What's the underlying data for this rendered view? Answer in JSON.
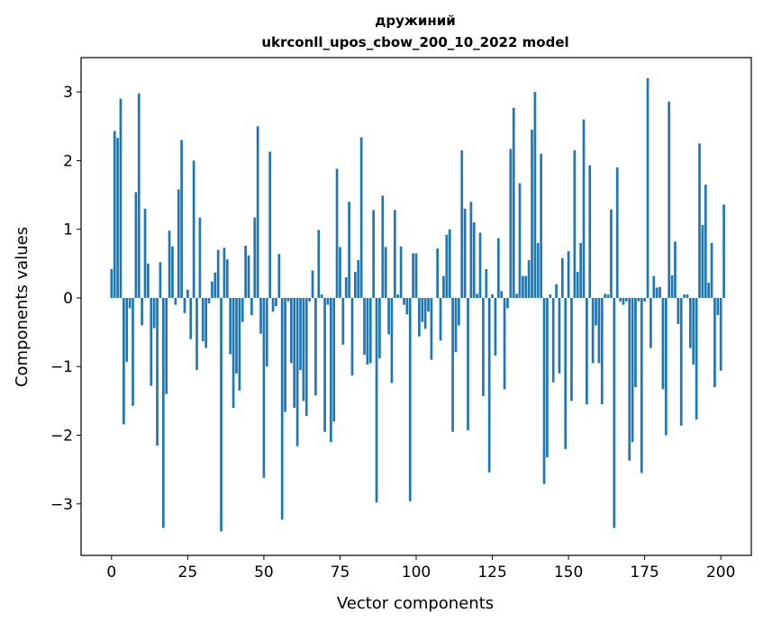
{
  "chart_data": {
    "type": "bar",
    "title": "дружиний",
    "subtitle": "ukrconll_upos_cbow_200_10_2022 model",
    "xlabel": "Vector components",
    "ylabel": "Components values",
    "xlim": [
      -10,
      210
    ],
    "ylim": [
      -3.75,
      3.5
    ],
    "xticks": [
      0,
      25,
      50,
      75,
      100,
      125,
      150,
      175,
      200
    ],
    "yticks": [
      -3,
      -2,
      -1,
      0,
      1,
      2,
      3
    ],
    "ytick_labels": [
      "−3",
      "−2",
      "−1",
      "0",
      "1",
      "2",
      "3"
    ],
    "grid": false,
    "bar_color": "#1f77b4",
    "values": [
      0.42,
      2.43,
      2.33,
      2.9,
      -1.84,
      -0.93,
      -0.15,
      -1.57,
      1.54,
      2.98,
      -0.4,
      1.3,
      0.5,
      -1.28,
      -0.44,
      -2.15,
      0.52,
      -3.35,
      -1.4,
      0.98,
      0.75,
      -0.1,
      1.58,
      2.3,
      -0.22,
      0.12,
      -0.6,
      2.0,
      -1.05,
      1.17,
      -0.63,
      -0.73,
      -0.08,
      0.24,
      0.37,
      0.7,
      -3.4,
      0.73,
      0.56,
      -0.82,
      -1.6,
      -1.1,
      -1.35,
      -0.35,
      0.76,
      0.62,
      -0.25,
      1.17,
      2.5,
      -0.52,
      -2.62,
      -1.0,
      2.13,
      -0.2,
      -0.12,
      0.64,
      -3.23,
      -1.66,
      -0.05,
      -0.95,
      -1.6,
      -2.16,
      -1.05,
      -1.5,
      -1.72,
      -0.05,
      0.4,
      -1.42,
      0.99,
      0.05,
      -1.95,
      -0.1,
      -2.1,
      -1.8,
      1.88,
      0.74,
      -0.68,
      0.3,
      1.4,
      -1.13,
      0.38,
      0.55,
      2.34,
      -0.83,
      -0.97,
      -0.95,
      1.28,
      -2.98,
      -0.88,
      1.49,
      0.74,
      -0.53,
      -1.24,
      1.28,
      0.05,
      0.75,
      -0.1,
      -0.24,
      -2.96,
      0.65,
      0.65,
      -0.56,
      -0.35,
      -0.45,
      -0.2,
      -0.9,
      0.0,
      0.72,
      -0.62,
      0.32,
      0.92,
      1.0,
      -1.95,
      -0.79,
      -0.4,
      2.15,
      1.3,
      -1.93,
      1.4,
      1.1,
      0.06,
      0.95,
      -1.43,
      0.42,
      -2.54,
      0.05,
      -0.84,
      0.87,
      0.1,
      -1.33,
      -0.15,
      2.17,
      2.77,
      0.06,
      1.67,
      0.32,
      0.32,
      0.55,
      2.45,
      3.0,
      0.8,
      2.1,
      -2.71,
      -2.32,
      0.05,
      -1.23,
      0.2,
      -1.1,
      0.58,
      -2.2,
      0.68,
      -1.5,
      2.15,
      0.38,
      0.8,
      2.6,
      -1.55,
      1.93,
      -0.95,
      -0.4,
      -0.95,
      -1.55,
      0.06,
      0.05,
      1.29,
      -3.35,
      1.9,
      -0.05,
      -0.1,
      -0.05,
      -2.37,
      -2.1,
      -1.3,
      -0.05,
      -2.55,
      -0.05,
      3.2,
      -0.73,
      0.32,
      0.15,
      0.16,
      -1.33,
      -2.0,
      2.86,
      0.33,
      0.82,
      -0.38,
      -1.86,
      0.05,
      0.05,
      -0.73,
      -0.97,
      -1.77,
      2.25,
      1.06,
      1.65,
      0.22,
      0.8,
      -1.3,
      -0.25,
      -1.06,
      1.36
    ]
  }
}
